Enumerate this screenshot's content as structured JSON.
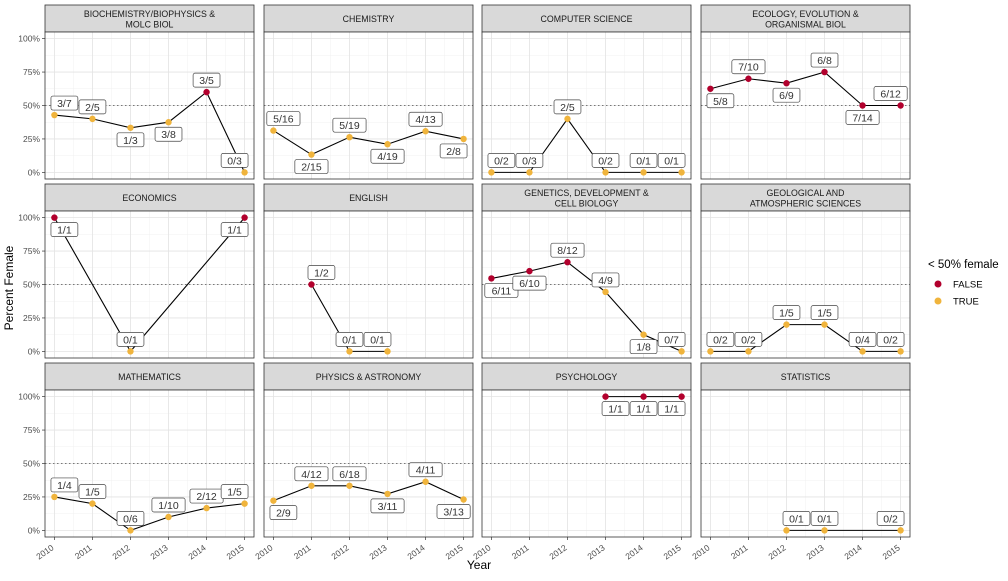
{
  "chart_data": {
    "type": "line",
    "xlabel": "Year",
    "ylabel": "Percent Female",
    "x_ticks": [
      "2010",
      "2011",
      "2012",
      "2013",
      "2014",
      "2015"
    ],
    "y_ticks": [
      "0%",
      "25%",
      "50%",
      "75%",
      "100%"
    ],
    "xlim": [
      2010,
      2015
    ],
    "ylim": [
      0,
      1
    ],
    "reference_line": 0.5,
    "grid": true,
    "legend": {
      "title": "< 50% female",
      "position": "right",
      "items": [
        {
          "label": "FALSE",
          "color": "#b2002d"
        },
        {
          "label": "TRUE",
          "color": "#f0b43c"
        }
      ]
    },
    "panels": [
      {
        "title": [
          "BIOCHEMISTRY/BIOPHYSICS &",
          "MOLC BIOL"
        ],
        "points": [
          {
            "x": 2010,
            "y": 0.4286,
            "label": "3/7",
            "lt50": "TRUE"
          },
          {
            "x": 2011,
            "y": 0.4,
            "label": "2/5",
            "lt50": "TRUE"
          },
          {
            "x": 2012,
            "y": 0.3333,
            "label": "1/3",
            "lt50": "TRUE"
          },
          {
            "x": 2013,
            "y": 0.375,
            "label": "3/8",
            "lt50": "TRUE"
          },
          {
            "x": 2014,
            "y": 0.6,
            "label": "3/5",
            "lt50": "FALSE"
          },
          {
            "x": 2015,
            "y": 0.0,
            "label": "0/3",
            "lt50": "TRUE"
          }
        ]
      },
      {
        "title": [
          "CHEMISTRY"
        ],
        "points": [
          {
            "x": 2010,
            "y": 0.3125,
            "label": "5/16",
            "lt50": "TRUE"
          },
          {
            "x": 2011,
            "y": 0.1333,
            "label": "2/15",
            "lt50": "TRUE"
          },
          {
            "x": 2012,
            "y": 0.2632,
            "label": "5/19",
            "lt50": "TRUE"
          },
          {
            "x": 2013,
            "y": 0.2105,
            "label": "4/19",
            "lt50": "TRUE"
          },
          {
            "x": 2014,
            "y": 0.3077,
            "label": "4/13",
            "lt50": "TRUE"
          },
          {
            "x": 2015,
            "y": 0.25,
            "label": "2/8",
            "lt50": "TRUE"
          }
        ]
      },
      {
        "title": [
          "COMPUTER SCIENCE"
        ],
        "points": [
          {
            "x": 2010,
            "y": 0.0,
            "label": "0/2",
            "lt50": "TRUE"
          },
          {
            "x": 2011,
            "y": 0.0,
            "label": "0/3",
            "lt50": "TRUE"
          },
          {
            "x": 2012,
            "y": 0.4,
            "label": "2/5",
            "lt50": "TRUE"
          },
          {
            "x": 2013,
            "y": 0.0,
            "label": "0/2",
            "lt50": "TRUE"
          },
          {
            "x": 2014,
            "y": 0.0,
            "label": "0/1",
            "lt50": "TRUE"
          },
          {
            "x": 2015,
            "y": 0.0,
            "label": "0/1",
            "lt50": "TRUE"
          }
        ]
      },
      {
        "title": [
          "ECOLOGY, EVOLUTION &",
          "ORGANISMAL BIOL"
        ],
        "points": [
          {
            "x": 2010,
            "y": 0.625,
            "label": "5/8",
            "lt50": "FALSE"
          },
          {
            "x": 2011,
            "y": 0.7,
            "label": "7/10",
            "lt50": "FALSE"
          },
          {
            "x": 2012,
            "y": 0.6667,
            "label": "6/9",
            "lt50": "FALSE"
          },
          {
            "x": 2013,
            "y": 0.75,
            "label": "6/8",
            "lt50": "FALSE"
          },
          {
            "x": 2014,
            "y": 0.5,
            "label": "7/14",
            "lt50": "FALSE"
          },
          {
            "x": 2015,
            "y": 0.5,
            "label": "6/12",
            "lt50": "FALSE"
          }
        ]
      },
      {
        "title": [
          "ECONOMICS"
        ],
        "points": [
          {
            "x": 2010,
            "y": 1.0,
            "label": "1/1",
            "lt50": "FALSE"
          },
          {
            "x": 2012,
            "y": 0.0,
            "label": "0/1",
            "lt50": "TRUE"
          },
          {
            "x": 2015,
            "y": 1.0,
            "label": "1/1",
            "lt50": "FALSE"
          }
        ]
      },
      {
        "title": [
          "ENGLISH"
        ],
        "points": [
          {
            "x": 2011,
            "y": 0.5,
            "label": "1/2",
            "lt50": "FALSE"
          },
          {
            "x": 2012,
            "y": 0.0,
            "label": "0/1",
            "lt50": "TRUE"
          },
          {
            "x": 2013,
            "y": 0.0,
            "label": "0/1",
            "lt50": "TRUE"
          }
        ]
      },
      {
        "title": [
          "GENETICS, DEVELOPMENT &",
          "CELL BIOLOGY"
        ],
        "points": [
          {
            "x": 2010,
            "y": 0.5455,
            "label": "6/11",
            "lt50": "FALSE"
          },
          {
            "x": 2011,
            "y": 0.6,
            "label": "6/10",
            "lt50": "FALSE"
          },
          {
            "x": 2012,
            "y": 0.6667,
            "label": "8/12",
            "lt50": "FALSE"
          },
          {
            "x": 2013,
            "y": 0.4444,
            "label": "4/9",
            "lt50": "TRUE"
          },
          {
            "x": 2014,
            "y": 0.125,
            "label": "1/8",
            "lt50": "TRUE"
          },
          {
            "x": 2015,
            "y": 0.0,
            "label": "0/7",
            "lt50": "TRUE"
          }
        ]
      },
      {
        "title": [
          "GEOLOGICAL AND",
          "ATMOSPHERIC SCIENCES"
        ],
        "points": [
          {
            "x": 2010,
            "y": 0.0,
            "label": "0/2",
            "lt50": "TRUE"
          },
          {
            "x": 2011,
            "y": 0.0,
            "label": "0/2",
            "lt50": "TRUE"
          },
          {
            "x": 2012,
            "y": 0.2,
            "label": "1/5",
            "lt50": "TRUE"
          },
          {
            "x": 2013,
            "y": 0.2,
            "label": "1/5",
            "lt50": "TRUE"
          },
          {
            "x": 2014,
            "y": 0.0,
            "label": "0/4",
            "lt50": "TRUE"
          },
          {
            "x": 2015,
            "y": 0.0,
            "label": "0/2",
            "lt50": "TRUE"
          }
        ]
      },
      {
        "title": [
          "MATHEMATICS"
        ],
        "points": [
          {
            "x": 2010,
            "y": 0.25,
            "label": "1/4",
            "lt50": "TRUE"
          },
          {
            "x": 2011,
            "y": 0.2,
            "label": "1/5",
            "lt50": "TRUE"
          },
          {
            "x": 2012,
            "y": 0.0,
            "label": "0/6",
            "lt50": "TRUE"
          },
          {
            "x": 2013,
            "y": 0.1,
            "label": "1/10",
            "lt50": "TRUE"
          },
          {
            "x": 2014,
            "y": 0.1667,
            "label": "2/12",
            "lt50": "TRUE"
          },
          {
            "x": 2015,
            "y": 0.2,
            "label": "1/5",
            "lt50": "TRUE"
          }
        ]
      },
      {
        "title": [
          "PHYSICS & ASTRONOMY"
        ],
        "points": [
          {
            "x": 2010,
            "y": 0.2222,
            "label": "2/9",
            "lt50": "TRUE"
          },
          {
            "x": 2011,
            "y": 0.3333,
            "label": "4/12",
            "lt50": "TRUE"
          },
          {
            "x": 2012,
            "y": 0.3333,
            "label": "6/18",
            "lt50": "TRUE"
          },
          {
            "x": 2013,
            "y": 0.2727,
            "label": "3/11",
            "lt50": "TRUE"
          },
          {
            "x": 2014,
            "y": 0.3636,
            "label": "4/11",
            "lt50": "TRUE"
          },
          {
            "x": 2015,
            "y": 0.2308,
            "label": "3/13",
            "lt50": "TRUE"
          }
        ]
      },
      {
        "title": [
          "PSYCHOLOGY"
        ],
        "points": [
          {
            "x": 2013,
            "y": 1.0,
            "label": "1/1",
            "lt50": "FALSE"
          },
          {
            "x": 2014,
            "y": 1.0,
            "label": "1/1",
            "lt50": "FALSE"
          },
          {
            "x": 2015,
            "y": 1.0,
            "label": "1/1",
            "lt50": "FALSE"
          }
        ]
      },
      {
        "title": [
          "STATISTICS"
        ],
        "points": [
          {
            "x": 2012,
            "y": 0.0,
            "label": "0/1",
            "lt50": "TRUE"
          },
          {
            "x": 2013,
            "y": 0.0,
            "label": "0/1",
            "lt50": "TRUE"
          },
          {
            "x": 2015,
            "y": 0.0,
            "label": "0/2",
            "lt50": "TRUE"
          }
        ]
      }
    ]
  }
}
